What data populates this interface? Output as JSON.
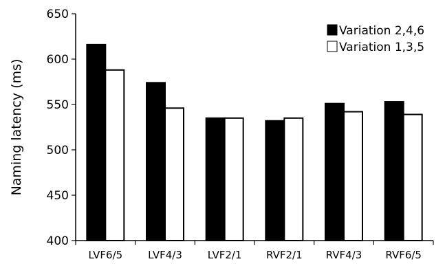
{
  "chart_data": {
    "type": "bar",
    "title": "",
    "xlabel": "",
    "ylabel": "Naming latency (ms)",
    "ylim": [
      400,
      650
    ],
    "yticks": [
      400,
      450,
      500,
      550,
      600,
      650
    ],
    "categories": [
      "LVF6/5",
      "LVF4/3",
      "LVF2/1",
      "RVF2/1",
      "RVF4/3",
      "RVF6/5"
    ],
    "series": [
      {
        "name": "Variation 2,4,6",
        "color": "#000000",
        "values": [
          616,
          574,
          535,
          532,
          551,
          553
        ]
      },
      {
        "name": "Variation 1,3,5",
        "color": "#ffffff",
        "values": [
          588,
          546,
          535,
          535,
          542,
          539
        ]
      }
    ],
    "legend_position": "top-right",
    "grid": false
  }
}
